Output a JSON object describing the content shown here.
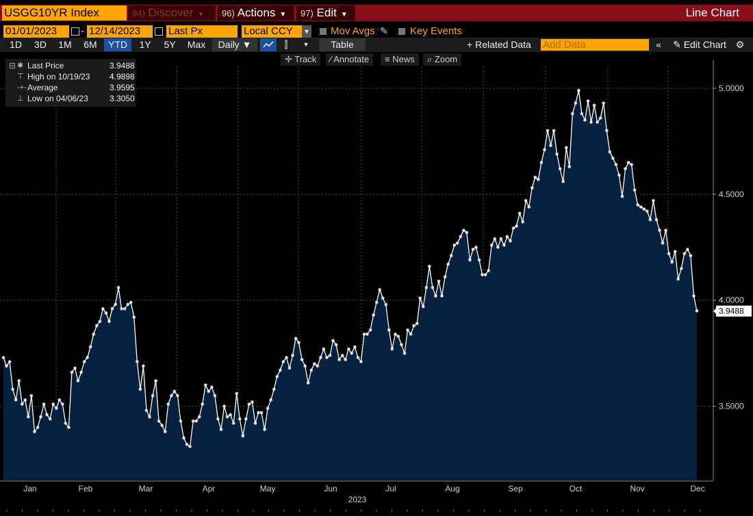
{
  "header": {
    "security": "USGG10YR Index",
    "menus": [
      {
        "num": "94)",
        "label": "Discover",
        "dim": true
      },
      {
        "num": "96)",
        "label": "Actions",
        "dim": false
      },
      {
        "num": "97)",
        "label": "Edit",
        "dim": false
      }
    ],
    "chart_type": "Line Chart"
  },
  "controls": {
    "start_date": "01/01/2023",
    "date_sep": "-",
    "end_date": "12/14/2023",
    "field": "Last Px",
    "currency": "Local CCY",
    "mov_avgs": "Mov Avgs",
    "key_events": "Key Events"
  },
  "toolbar": {
    "ranges": [
      "1D",
      "3D",
      "1M",
      "6M",
      "YTD",
      "1Y",
      "5Y",
      "Max"
    ],
    "active_range": "YTD",
    "frequency": "Daily",
    "table": "Table",
    "related_data": "Related Data",
    "add_data_placeholder": "Add Data",
    "edit_chart": "Edit Chart"
  },
  "tools": {
    "track": "Track",
    "annotate": "Annotate",
    "news": "News",
    "zoom": "Zoom"
  },
  "legend": {
    "last_price_label": "Last Price",
    "last_price_value": "3.9488",
    "high_label": "High on 10/19/23",
    "high_value": "4.9898",
    "average_label": "Average",
    "average_value": "3.9595",
    "low_label": "Low on 04/06/23",
    "low_value": "3.3050"
  },
  "colors": {
    "title_bar": "#8b0f1a",
    "accent": "#ffa500",
    "area_fill": "#06203f",
    "line": "#ffffff"
  },
  "chart_data": {
    "type": "area",
    "title": "USGG10YR Index",
    "xlabel": "2023",
    "ylabel": "",
    "x_ticks": [
      "Jan",
      "Feb",
      "Mar",
      "Apr",
      "May",
      "Jun",
      "Jul",
      "Aug",
      "Sep",
      "Oct",
      "Nov",
      "Dec"
    ],
    "y_ticks": [
      "3.5000",
      "4.0000",
      "4.5000",
      "5.0000"
    ],
    "ylim": [
      3.15,
      5.1
    ],
    "last_value_label": "3.9488",
    "series": [
      {
        "name": "Last Price",
        "values": [
          3.73,
          3.69,
          3.71,
          3.58,
          3.53,
          3.62,
          3.51,
          3.53,
          3.45,
          3.55,
          3.38,
          3.4,
          3.45,
          3.51,
          3.46,
          3.44,
          3.51,
          3.49,
          3.53,
          3.51,
          3.42,
          3.4,
          3.66,
          3.68,
          3.62,
          3.66,
          3.71,
          3.73,
          3.78,
          3.84,
          3.88,
          3.9,
          3.96,
          3.94,
          3.9,
          3.96,
          3.98,
          4.06,
          3.96,
          3.96,
          3.98,
          3.99,
          3.92,
          3.71,
          3.58,
          3.69,
          3.48,
          3.45,
          3.55,
          3.62,
          3.43,
          3.41,
          3.38,
          3.51,
          3.55,
          3.57,
          3.55,
          3.43,
          3.35,
          3.32,
          3.31,
          3.43,
          3.43,
          3.45,
          3.51,
          3.6,
          3.57,
          3.59,
          3.55,
          3.44,
          3.39,
          3.5,
          3.45,
          3.46,
          3.42,
          3.56,
          3.44,
          3.36,
          3.44,
          3.51,
          3.52,
          3.42,
          3.47,
          3.47,
          3.39,
          3.49,
          3.53,
          3.58,
          3.64,
          3.67,
          3.71,
          3.73,
          3.68,
          3.74,
          3.82,
          3.8,
          3.72,
          3.69,
          3.61,
          3.67,
          3.7,
          3.69,
          3.73,
          3.77,
          3.73,
          3.74,
          3.81,
          3.79,
          3.72,
          3.74,
          3.72,
          3.77,
          3.75,
          3.78,
          3.73,
          3.71,
          3.84,
          3.84,
          3.86,
          3.93,
          3.99,
          4.05,
          4.01,
          3.98,
          3.86,
          3.77,
          3.84,
          3.83,
          3.79,
          3.75,
          3.86,
          3.84,
          3.88,
          3.89,
          4.01,
          3.97,
          4.06,
          4.16,
          4.06,
          4.02,
          4.09,
          4.02,
          4.11,
          4.17,
          4.21,
          4.26,
          4.27,
          4.3,
          4.33,
          4.32,
          4.19,
          4.24,
          4.25,
          4.19,
          4.12,
          4.12,
          4.14,
          4.26,
          4.29,
          4.25,
          4.29,
          4.26,
          4.3,
          4.28,
          4.34,
          4.35,
          4.41,
          4.37,
          4.47,
          4.44,
          4.53,
          4.58,
          4.57,
          4.65,
          4.71,
          4.8,
          4.73,
          4.8,
          4.69,
          4.62,
          4.56,
          4.72,
          4.63,
          4.88,
          4.93,
          4.99,
          4.88,
          4.85,
          4.94,
          4.84,
          4.92,
          4.84,
          4.86,
          4.93,
          4.8,
          4.7,
          4.67,
          4.64,
          4.59,
          4.49,
          4.62,
          4.65,
          4.64,
          4.52,
          4.45,
          4.44,
          4.43,
          4.42,
          4.38,
          4.47,
          4.38,
          4.33,
          4.27,
          4.33,
          4.22,
          4.18,
          4.23,
          4.1,
          4.15,
          4.22,
          4.24,
          4.21,
          4.02,
          3.95
        ]
      }
    ]
  }
}
